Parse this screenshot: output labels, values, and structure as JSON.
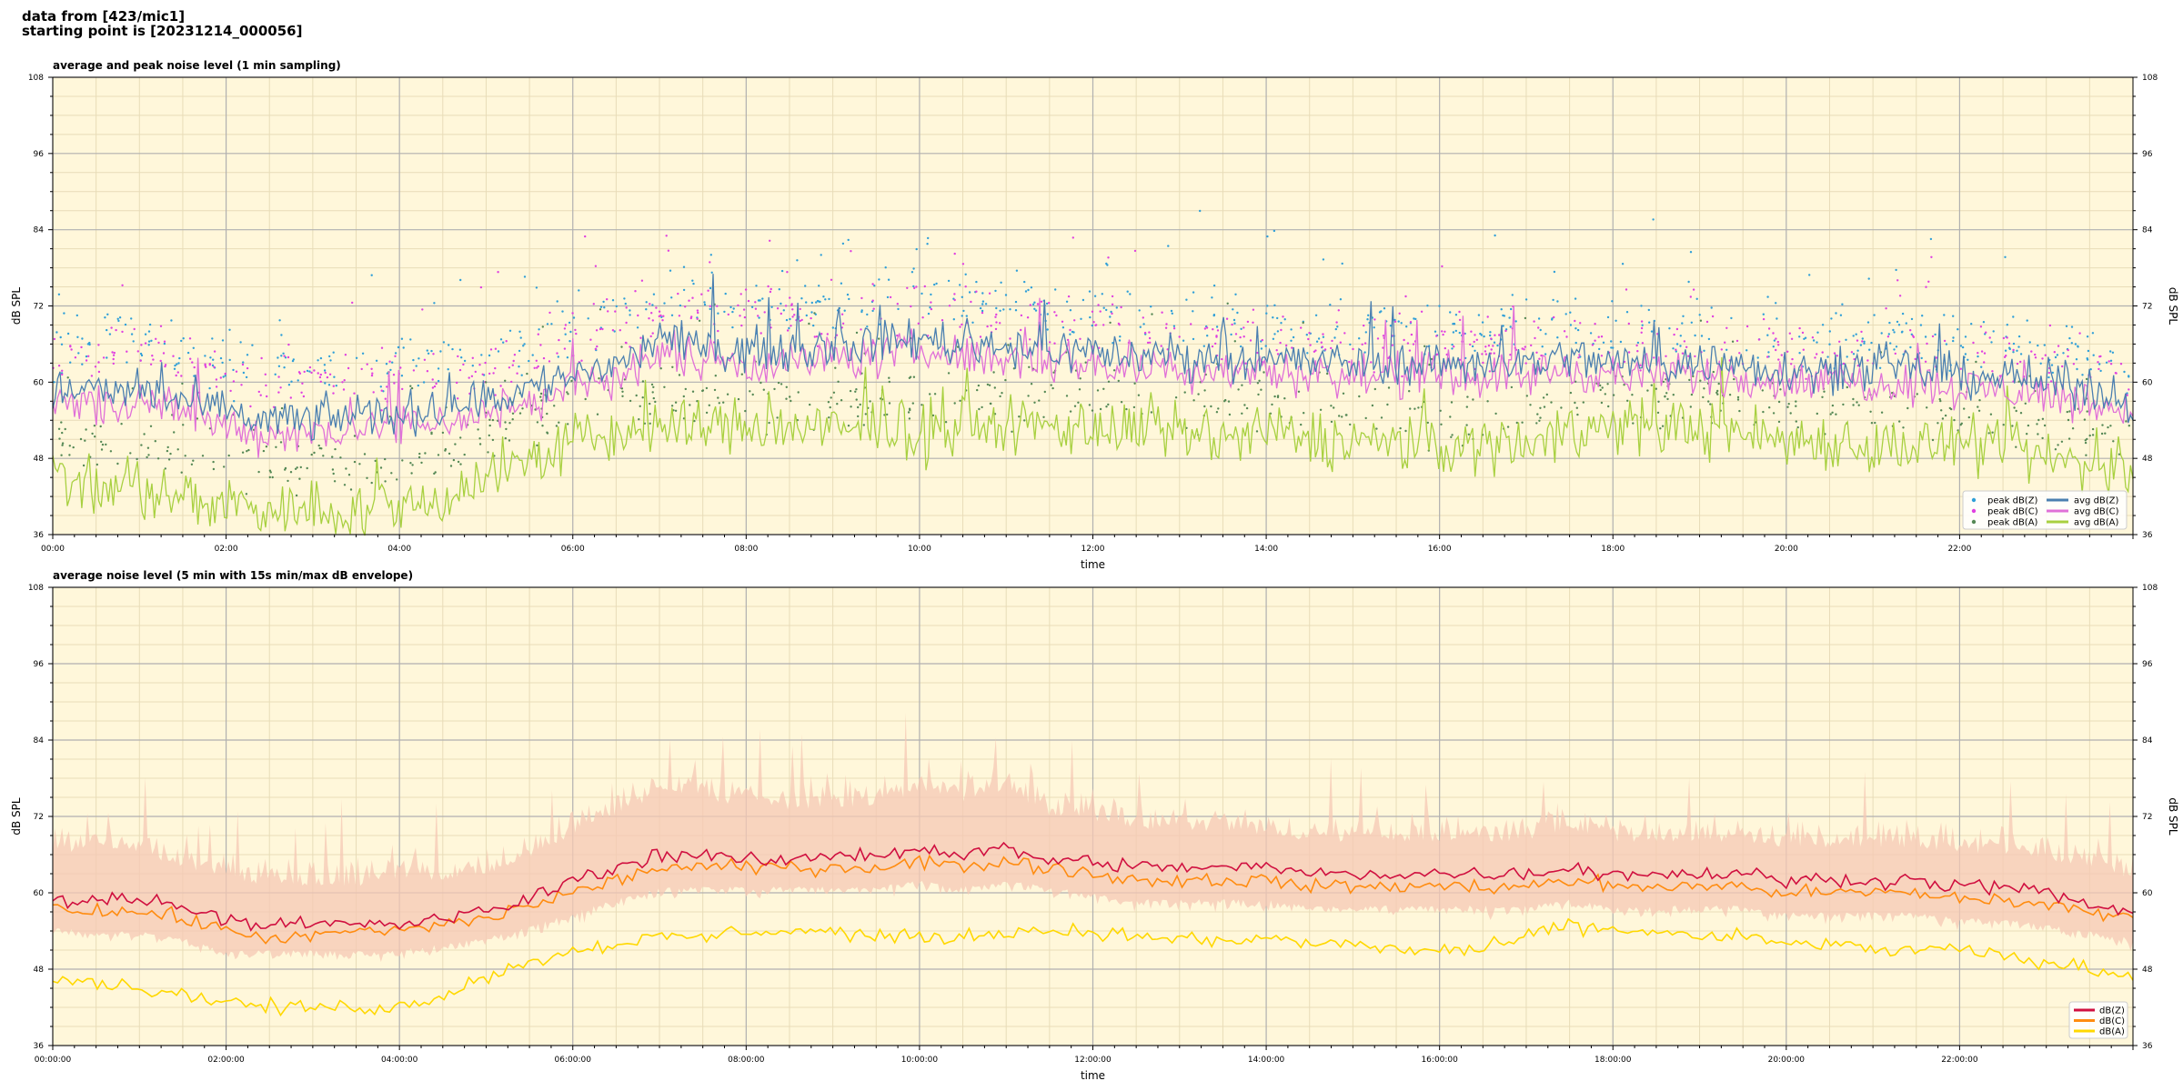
{
  "header": {
    "line1": "data from [423/mic1]",
    "line2": "starting point is [20231214_000056]"
  },
  "colors": {
    "background": "#fff7da",
    "peak_z": "#2f9fd8",
    "peak_c": "#e040e0",
    "peak_a": "#558855",
    "avg_z": "#4a7fb0",
    "avg_c": "#e070d8",
    "avg_a": "#a8d040",
    "z": "#d01040",
    "c": "#ff8c10",
    "a": "#ffd800",
    "envelope": "#f6c8b4"
  },
  "chart_data": [
    {
      "type": "line",
      "title": "average and peak noise level (1 min sampling)",
      "xlabel": "time",
      "ylabel": "dB SPL",
      "xlim_hours": [
        0,
        24
      ],
      "ylim": [
        36,
        108
      ],
      "yticks": [
        36,
        48,
        60,
        72,
        84,
        96,
        108
      ],
      "xticks": [
        "00:00",
        "02:00",
        "04:00",
        "06:00",
        "08:00",
        "10:00",
        "12:00",
        "14:00",
        "16:00",
        "18:00",
        "20:00",
        "22:00"
      ],
      "grid": true,
      "legend_position": "bottom-right",
      "x_hours": [
        0,
        0.5,
        1,
        1.5,
        2,
        2.5,
        3,
        3.5,
        4,
        4.5,
        5,
        5.5,
        6,
        6.5,
        7,
        7.5,
        8,
        8.5,
        9,
        9.5,
        10,
        10.5,
        11,
        11.5,
        12,
        12.5,
        13,
        13.5,
        14,
        14.5,
        15,
        15.5,
        16,
        16.5,
        17,
        17.5,
        18,
        18.5,
        19,
        19.5,
        20,
        20.5,
        21,
        21.5,
        22,
        22.5,
        23,
        23.5,
        24
      ],
      "series": [
        {
          "name": "avg dB(Z)",
          "kind": "line",
          "values": [
            59,
            58,
            59,
            57,
            55,
            54,
            54,
            55,
            55,
            56,
            57,
            59,
            61,
            63,
            66,
            66,
            65,
            65,
            66,
            66,
            67,
            66,
            66,
            65,
            65,
            64,
            64,
            64,
            64,
            63,
            63,
            63,
            63,
            63,
            63,
            64,
            63,
            63,
            63,
            63,
            62,
            62,
            62,
            62,
            61,
            61,
            60,
            59,
            57
          ]
        },
        {
          "name": "avg dB(C)",
          "kind": "line",
          "values": [
            57,
            56,
            57,
            55,
            53,
            52,
            52,
            53,
            53,
            54,
            55,
            57,
            59,
            61,
            64,
            64,
            63,
            63,
            64,
            64,
            65,
            64,
            64,
            63,
            63,
            62,
            62,
            62,
            62,
            61,
            61,
            61,
            61,
            61,
            61,
            62,
            61,
            61,
            61,
            61,
            60,
            60,
            60,
            60,
            59,
            59,
            58,
            57,
            55
          ]
        },
        {
          "name": "avg dB(A)",
          "kind": "line",
          "values": [
            45,
            43,
            43,
            42,
            41,
            40,
            40,
            40,
            40,
            42,
            45,
            48,
            50,
            52,
            53,
            53,
            53,
            53,
            52,
            53,
            52,
            53,
            53,
            53,
            53,
            52,
            52,
            51,
            52,
            51,
            51,
            50,
            50,
            50,
            51,
            52,
            53,
            53,
            53,
            52,
            51,
            51,
            50,
            50,
            50,
            49,
            48,
            47,
            46
          ]
        },
        {
          "name": "peak dB(Z)",
          "kind": "scatter",
          "values": [
            66,
            66,
            67,
            65,
            63,
            62,
            62,
            62,
            63,
            63,
            64,
            66,
            69,
            71,
            73,
            73,
            72,
            72,
            72,
            73,
            74,
            73,
            72,
            71,
            71,
            70,
            70,
            69,
            69,
            68,
            68,
            68,
            68,
            68,
            68,
            69,
            68,
            68,
            68,
            68,
            67,
            67,
            67,
            67,
            66,
            66,
            65,
            64,
            62
          ]
        },
        {
          "name": "peak dB(C)",
          "kind": "scatter",
          "values": [
            64,
            64,
            65,
            63,
            61,
            60,
            60,
            60,
            61,
            61,
            62,
            64,
            67,
            69,
            71,
            71,
            70,
            70,
            70,
            71,
            72,
            71,
            70,
            69,
            69,
            68,
            68,
            67,
            67,
            66,
            66,
            66,
            66,
            66,
            66,
            67,
            66,
            66,
            66,
            66,
            65,
            65,
            65,
            65,
            64,
            64,
            63,
            62,
            60
          ]
        },
        {
          "name": "peak dB(A)",
          "kind": "scatter",
          "values": [
            52,
            50,
            50,
            49,
            48,
            47,
            47,
            47,
            47,
            49,
            52,
            54,
            56,
            57,
            58,
            58,
            58,
            58,
            57,
            58,
            57,
            58,
            58,
            58,
            58,
            57,
            57,
            56,
            57,
            56,
            56,
            55,
            55,
            55,
            56,
            57,
            58,
            58,
            58,
            57,
            56,
            56,
            55,
            55,
            55,
            54,
            53,
            52,
            51
          ]
        }
      ]
    },
    {
      "type": "line",
      "title": "average noise level (5 min with 15s min/max dB envelope)",
      "xlabel": "time",
      "ylabel": "dB SPL",
      "xlim_hours": [
        0,
        24
      ],
      "ylim": [
        36,
        108
      ],
      "yticks": [
        36,
        48,
        60,
        72,
        84,
        96,
        108
      ],
      "xticks": [
        "00:00:00",
        "02:00:00",
        "04:00:00",
        "06:00:00",
        "08:00:00",
        "10:00:00",
        "12:00:00",
        "14:00:00",
        "16:00:00",
        "18:00:00",
        "20:00:00",
        "22:00:00"
      ],
      "grid": true,
      "legend_position": "bottom-right",
      "x_hours": [
        0,
        0.5,
        1,
        1.5,
        2,
        2.5,
        3,
        3.5,
        4,
        4.5,
        5,
        5.5,
        6,
        6.5,
        7,
        7.5,
        8,
        8.5,
        9,
        9.5,
        10,
        10.5,
        11,
        11.5,
        12,
        12.5,
        13,
        13.5,
        14,
        14.5,
        15,
        15.5,
        16,
        16.5,
        17,
        17.5,
        18,
        18.5,
        19,
        19.5,
        20,
        20.5,
        21,
        21.5,
        22,
        22.5,
        23,
        23.5,
        24
      ],
      "series": [
        {
          "name": "dB(Z)",
          "kind": "line",
          "values": [
            59,
            59,
            59,
            58,
            56,
            55,
            55,
            55,
            55,
            56,
            57,
            59,
            62,
            64,
            66,
            66,
            65,
            65,
            66,
            66,
            67,
            66,
            67,
            65,
            65,
            64,
            64,
            64,
            64,
            63,
            63,
            63,
            63,
            63,
            63,
            64,
            63,
            63,
            63,
            63,
            62,
            62,
            62,
            62,
            61,
            61,
            60,
            58,
            57
          ]
        },
        {
          "name": "dB(C)",
          "kind": "line",
          "values": [
            58,
            57,
            57,
            56,
            54,
            53,
            53,
            54,
            54,
            55,
            56,
            58,
            60,
            62,
            64,
            64,
            64,
            64,
            64,
            64,
            65,
            64,
            65,
            64,
            63,
            62,
            62,
            62,
            62,
            61,
            61,
            61,
            61,
            61,
            61,
            62,
            61,
            61,
            61,
            61,
            60,
            60,
            60,
            60,
            59,
            59,
            58,
            57,
            56
          ]
        },
        {
          "name": "dB(A)",
          "kind": "line",
          "values": [
            47,
            46,
            45,
            44,
            43,
            42,
            42,
            42,
            42,
            44,
            47,
            49,
            51,
            52,
            53,
            53,
            54,
            54,
            54,
            53,
            53,
            53,
            54,
            54,
            54,
            53,
            53,
            52,
            53,
            52,
            52,
            51,
            51,
            51,
            53,
            55,
            54,
            54,
            53,
            53,
            52,
            52,
            51,
            51,
            51,
            50,
            49,
            48,
            47
          ]
        },
        {
          "name": "envelope max",
          "kind": "band",
          "values": [
            66,
            67,
            66,
            64,
            62,
            61,
            61,
            61,
            62,
            62,
            63,
            65,
            69,
            72,
            75,
            75,
            73,
            73,
            73,
            73,
            76,
            74,
            76,
            72,
            71,
            70,
            70,
            69,
            69,
            68,
            68,
            68,
            68,
            68,
            68,
            70,
            68,
            68,
            68,
            68,
            67,
            67,
            67,
            67,
            66,
            66,
            65,
            64,
            62
          ]
        },
        {
          "name": "envelope min",
          "kind": "band",
          "values": [
            55,
            54,
            54,
            53,
            51,
            51,
            51,
            51,
            51,
            52,
            53,
            55,
            57,
            59,
            61,
            61,
            61,
            61,
            61,
            61,
            62,
            61,
            62,
            61,
            60,
            59,
            59,
            59,
            59,
            58,
            58,
            58,
            58,
            58,
            58,
            59,
            58,
            58,
            58,
            58,
            57,
            57,
            57,
            57,
            56,
            56,
            55,
            54,
            53
          ]
        }
      ]
    }
  ]
}
